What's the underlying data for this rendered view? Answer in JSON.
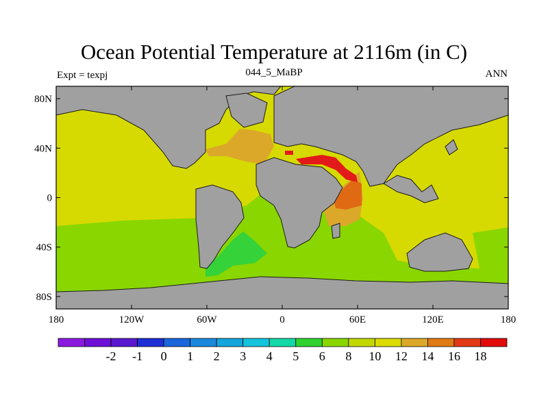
{
  "title": "Ocean Potential Temperature at 2116m (in C)",
  "subtitle": "044_5_MaBP",
  "left_label": "Expt = texpj",
  "right_label": "ANN",
  "colors": {
    "land": "#a0a0a0",
    "arctic": "#dca82a",
    "atl_south": "#9ad800",
    "atl_mid": "#d4d800",
    "pacific": "#d6da00",
    "warm1": "#dca82a",
    "warm2": "#e06a14",
    "hot": "#e31a1a",
    "southern": "#36d23a",
    "green": "#8ad600"
  },
  "chart_data": {
    "type": "heatmap",
    "title": "Ocean Potential Temperature at 2116m (in C)",
    "xlim": [
      -180,
      180
    ],
    "ylim": [
      -90,
      90
    ],
    "x_ticks": [
      {
        "value": -180,
        "label": "180"
      },
      {
        "value": -120,
        "label": "120W"
      },
      {
        "value": -60,
        "label": "60W"
      },
      {
        "value": 0,
        "label": "0"
      },
      {
        "value": 60,
        "label": "60E"
      },
      {
        "value": 120,
        "label": "120E"
      },
      {
        "value": 180,
        "label": "180"
      }
    ],
    "y_ticks": [
      {
        "value": 80,
        "label": "80N"
      },
      {
        "value": 40,
        "label": "40N"
      },
      {
        "value": 0,
        "label": "0"
      },
      {
        "value": -40,
        "label": "40S"
      },
      {
        "value": -80,
        "label": "80S"
      }
    ],
    "colorbar": {
      "colors": [
        "#8a1ae0",
        "#6e10d8",
        "#5a18d0",
        "#1c30d6",
        "#1a66dc",
        "#1a88dc",
        "#14a6dc",
        "#14c4dc",
        "#14d8a8",
        "#30d230",
        "#8ad600",
        "#c2d800",
        "#dcdc00",
        "#dca82a",
        "#e07a14",
        "#e23a14",
        "#e20a0a"
      ],
      "levels": [
        "-2",
        "-1",
        "0",
        "1",
        "2",
        "3",
        "4",
        "5",
        "6",
        "8",
        "10",
        "12",
        "14",
        "16",
        "18"
      ]
    }
  }
}
